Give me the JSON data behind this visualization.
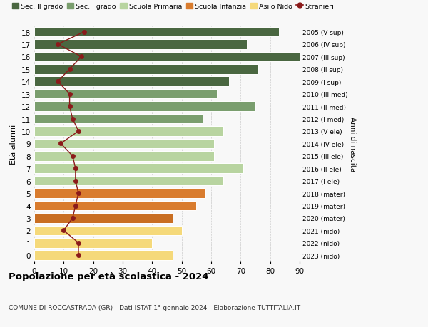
{
  "ages": [
    18,
    17,
    16,
    15,
    14,
    13,
    12,
    11,
    10,
    9,
    8,
    7,
    6,
    5,
    4,
    3,
    2,
    1,
    0
  ],
  "right_labels": [
    "2005 (V sup)",
    "2006 (IV sup)",
    "2007 (III sup)",
    "2008 (II sup)",
    "2009 (I sup)",
    "2010 (III med)",
    "2011 (II med)",
    "2012 (I med)",
    "2013 (V ele)",
    "2014 (IV ele)",
    "2015 (III ele)",
    "2016 (II ele)",
    "2017 (I ele)",
    "2018 (mater)",
    "2019 (mater)",
    "2020 (mater)",
    "2021 (nido)",
    "2022 (nido)",
    "2023 (nido)"
  ],
  "bar_values": [
    83,
    72,
    90,
    76,
    66,
    62,
    75,
    57,
    64,
    61,
    61,
    71,
    64,
    58,
    55,
    47,
    50,
    40,
    47
  ],
  "bar_colors": [
    "#4a6741",
    "#4a6741",
    "#4a6741",
    "#4a6741",
    "#4a6741",
    "#7a9e6e",
    "#7a9e6e",
    "#7a9e6e",
    "#b8d4a0",
    "#b8d4a0",
    "#b8d4a0",
    "#b8d4a0",
    "#b8d4a0",
    "#d97c2e",
    "#d97c2e",
    "#c96e22",
    "#f5d97a",
    "#f5d97a",
    "#f5d97a"
  ],
  "stranieri_values": [
    17,
    8,
    16,
    12,
    8,
    12,
    12,
    13,
    15,
    9,
    13,
    14,
    14,
    15,
    14,
    13,
    10,
    15,
    15
  ],
  "stranieri_color": "#8b1a1a",
  "legend_labels": [
    "Sec. II grado",
    "Sec. I grado",
    "Scuola Primaria",
    "Scuola Infanzia",
    "Asilo Nido",
    "Stranieri"
  ],
  "legend_colors": [
    "#4a6741",
    "#7a9e6e",
    "#b8d4a0",
    "#d97c2e",
    "#f5d97a",
    "#8b1a1a"
  ],
  "title": "Popolazione per età scolastica - 2024",
  "subtitle": "COMUNE DI ROCCASTRADA (GR) - Dati ISTAT 1° gennaio 2024 - Elaborazione TUTTITALIA.IT",
  "ylabel": "Età alunni",
  "ylabel2": "Anni di nascita",
  "xlim": [
    0,
    90
  ],
  "background_color": "#f8f8f8",
  "grid_color": "#cccccc"
}
